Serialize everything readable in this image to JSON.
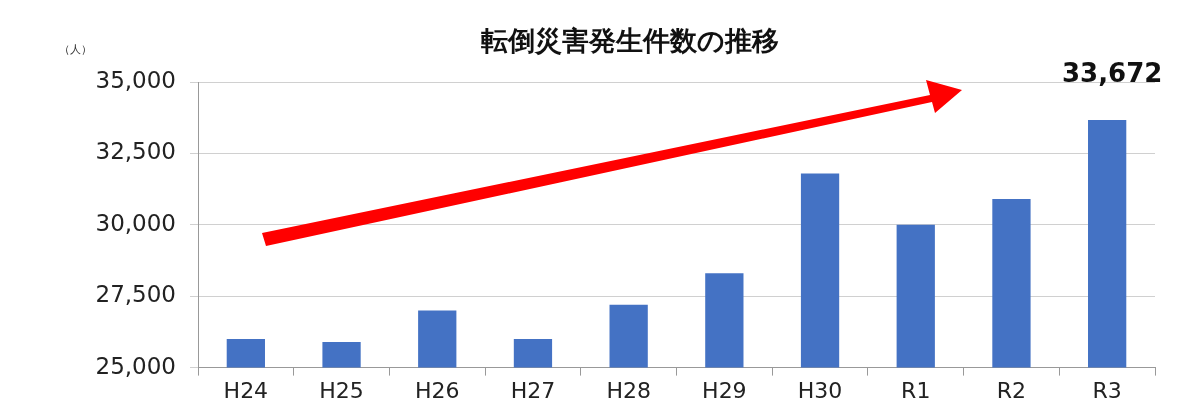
{
  "chart_data": {
    "type": "bar",
    "title": "転倒災害発生件数の推移",
    "ylabel": "（人）",
    "categories": [
      "H24",
      "H25",
      "H26",
      "H27",
      "H28",
      "H29",
      "H30",
      "R1",
      "R2",
      "R3"
    ],
    "values": [
      26000,
      25900,
      27000,
      26000,
      27200,
      28300,
      31800,
      30000,
      30900,
      33672
    ],
    "value_labels": [
      null,
      null,
      null,
      null,
      null,
      null,
      null,
      null,
      null,
      "33,672"
    ],
    "color": "#4472c4",
    "ylim": [
      25000,
      35000
    ],
    "yticks": [
      {
        "value": 25000,
        "label": "25,000"
      },
      {
        "value": 27500,
        "label": "27,500"
      },
      {
        "value": 30000,
        "label": "30,000"
      },
      {
        "value": 32500,
        "label": "32,500"
      },
      {
        "value": 35000,
        "label": "35,000"
      }
    ],
    "grid": "y",
    "legend": false
  }
}
